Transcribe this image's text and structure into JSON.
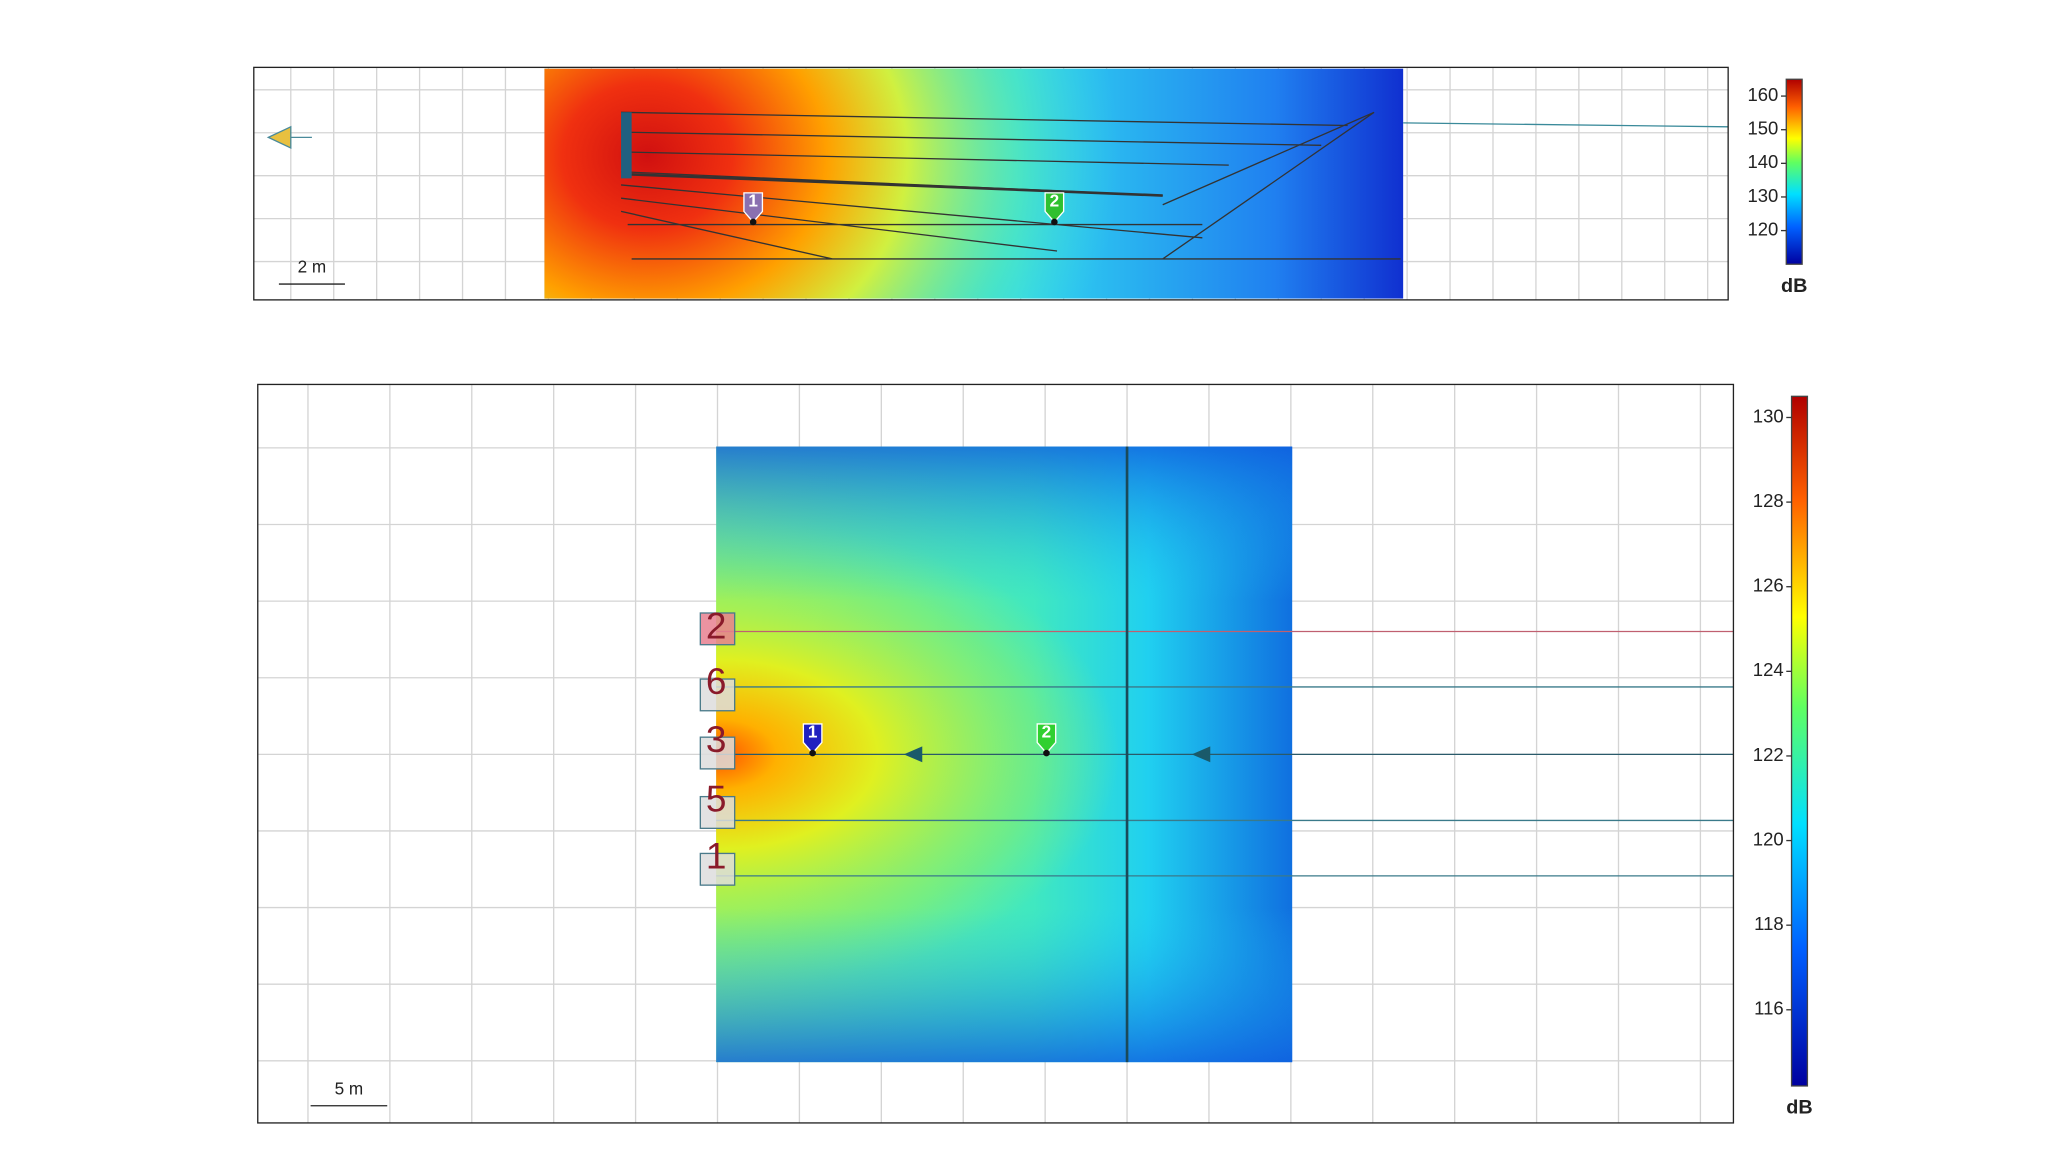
{
  "top_view": {
    "scale_label": "2 m",
    "markers": [
      "1",
      "2"
    ],
    "colorbar": {
      "unit": "dB",
      "lim": [
        110,
        165
      ],
      "ticks": [
        120,
        130,
        140,
        150,
        160
      ]
    }
  },
  "plan_view": {
    "scale_label": "5 m",
    "markers": [
      "1",
      "2"
    ],
    "speakers": [
      "2",
      "6",
      "3",
      "5",
      "1"
    ],
    "colorbar": {
      "unit": "dB",
      "lim": [
        114.2,
        130.5
      ],
      "ticks": [
        116,
        118,
        120,
        122,
        124,
        126,
        128,
        130
      ]
    }
  }
}
